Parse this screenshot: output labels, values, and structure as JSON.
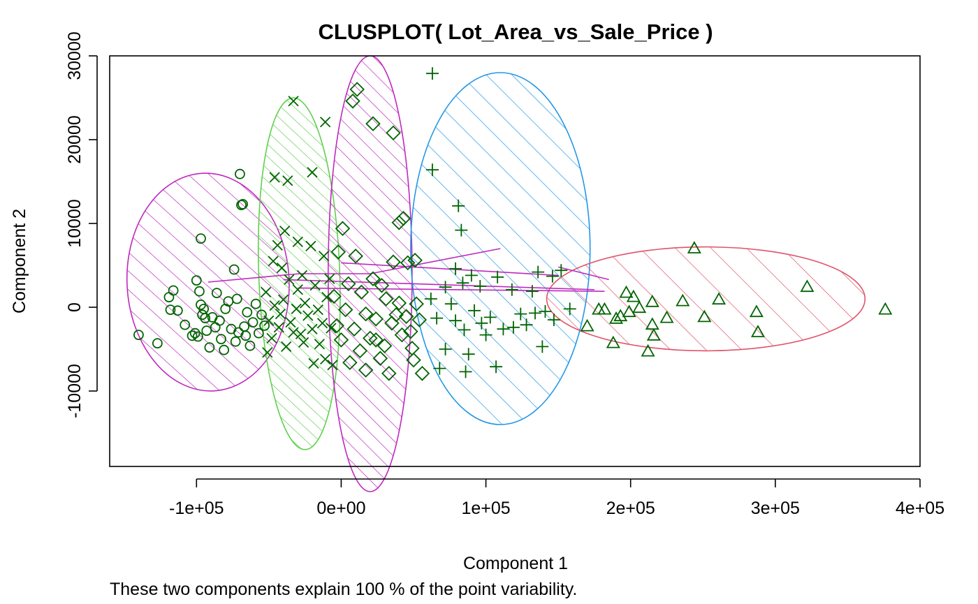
{
  "chart_data": {
    "type": "scatter",
    "title": "CLUSPLOT( Lot_Area_vs_Sale_Price )",
    "xlabel": "Component 1",
    "ylabel": "Component 2",
    "subtitle": "These two components explain 100 % of the point variability.",
    "xlim": [
      -160000,
      400000
    ],
    "ylim": [
      -19000,
      30000
    ],
    "x_ticks": [
      -100000,
      0,
      100000,
      200000,
      300000,
      400000
    ],
    "x_tick_labels": [
      "-1e+05",
      "0e+00",
      "1e+05",
      "2e+05",
      "3e+05",
      "4e+05"
    ],
    "y_ticks": [
      -10000,
      0,
      10000,
      20000,
      30000
    ],
    "y_tick_labels": [
      "-10000",
      "0",
      "10000",
      "20000",
      "30000"
    ],
    "point_color": "#006400",
    "clusters": [
      {
        "marker": "circle",
        "ellipse": {
          "cx": -92000,
          "cy": 3000,
          "rx": 56000,
          "ry": 13000,
          "rotation_deg": -3,
          "color": "#BE29BE",
          "hatch_angle_deg": 45
        },
        "points": [
          [
            -140000,
            -3300
          ],
          [
            -127000,
            -4300
          ],
          [
            -119000,
            1200
          ],
          [
            -118000,
            -300
          ],
          [
            -116000,
            2000
          ],
          [
            -113000,
            -400
          ],
          [
            -108000,
            -2100
          ],
          [
            -103000,
            -3400
          ],
          [
            -101000,
            -3100
          ],
          [
            -100000,
            3200
          ],
          [
            -99000,
            -3500
          ],
          [
            -98000,
            1900
          ],
          [
            -97000,
            8200
          ],
          [
            -97000,
            300
          ],
          [
            -95000,
            -200
          ],
          [
            -94000,
            -1300
          ],
          [
            -93000,
            -2800
          ],
          [
            -91000,
            -4800
          ],
          [
            -89000,
            -1200
          ],
          [
            -86000,
            1700
          ],
          [
            -84000,
            -1600
          ],
          [
            -83000,
            -3800
          ],
          [
            -81000,
            -5100
          ],
          [
            -80000,
            -200
          ],
          [
            -78000,
            700
          ],
          [
            -76000,
            -2600
          ],
          [
            -74000,
            4500
          ],
          [
            -73000,
            -4100
          ],
          [
            -72000,
            1000
          ],
          [
            -70000,
            15900
          ],
          [
            -69000,
            12200
          ],
          [
            -68000,
            12300
          ],
          [
            -67000,
            -2300
          ],
          [
            -65000,
            -600
          ],
          [
            -63000,
            -4600
          ],
          [
            -61000,
            -1800
          ],
          [
            -59000,
            400
          ],
          [
            -57000,
            -3100
          ],
          [
            -55000,
            -900
          ],
          [
            -53000,
            -2200
          ],
          [
            -71000,
            -3000
          ],
          [
            -87000,
            -2400
          ],
          [
            -96000,
            -900
          ],
          [
            -66000,
            -3400
          ]
        ]
      },
      {
        "marker": "x",
        "ellipse": {
          "cx": -29000,
          "cy": 4000,
          "rx": 28000,
          "ry": 21000,
          "rotation_deg": -2,
          "color": "#61D04F",
          "hatch_angle_deg": 45
        },
        "points": [
          [
            -33000,
            24600
          ],
          [
            -11000,
            22100
          ],
          [
            -20000,
            16100
          ],
          [
            -37000,
            15100
          ],
          [
            -46000,
            15500
          ],
          [
            -39000,
            9100
          ],
          [
            -44000,
            7400
          ],
          [
            -30000,
            7800
          ],
          [
            -21000,
            7300
          ],
          [
            -12000,
            6100
          ],
          [
            -47000,
            5500
          ],
          [
            -41000,
            4700
          ],
          [
            -36000,
            3300
          ],
          [
            -27000,
            3800
          ],
          [
            -18000,
            2600
          ],
          [
            -8000,
            3400
          ],
          [
            -52000,
            1800
          ],
          [
            -46000,
            200
          ],
          [
            -40000,
            900
          ],
          [
            -31000,
            -200
          ],
          [
            -25000,
            500
          ],
          [
            -16000,
            -300
          ],
          [
            -10000,
            1200
          ],
          [
            -50000,
            -1600
          ],
          [
            -43000,
            -2400
          ],
          [
            -35000,
            -1800
          ],
          [
            -28000,
            -3200
          ],
          [
            -20000,
            -2600
          ],
          [
            -13000,
            -1900
          ],
          [
            -48000,
            -3700
          ],
          [
            -38000,
            -4700
          ],
          [
            -26000,
            -4200
          ],
          [
            -19000,
            -6700
          ],
          [
            -11000,
            -6200
          ],
          [
            -6000,
            -6900
          ],
          [
            -51000,
            -5400
          ],
          [
            -33000,
            -3000
          ],
          [
            -23000,
            -1000
          ],
          [
            -15000,
            -4400
          ],
          [
            -42000,
            -800
          ],
          [
            -30000,
            2100
          ],
          [
            -7000,
            -2500
          ]
        ]
      },
      {
        "marker": "diamond",
        "ellipse": {
          "cx": 20000,
          "cy": 4000,
          "rx": 29000,
          "ry": 26000,
          "rotation_deg": 0,
          "color": "#BE29BE",
          "hatch_angle_deg": 45
        },
        "points": [
          [
            11000,
            26000
          ],
          [
            8000,
            24600
          ],
          [
            22000,
            21900
          ],
          [
            36000,
            20800
          ],
          [
            40000,
            10100
          ],
          [
            43000,
            10600
          ],
          [
            1000,
            9400
          ],
          [
            10000,
            6100
          ],
          [
            -2000,
            6600
          ],
          [
            36000,
            5400
          ],
          [
            46000,
            5300
          ],
          [
            51000,
            5600
          ],
          [
            22000,
            3400
          ],
          [
            28000,
            2600
          ],
          [
            5000,
            2800
          ],
          [
            14000,
            1800
          ],
          [
            -5000,
            1300
          ],
          [
            31000,
            1000
          ],
          [
            40000,
            500
          ],
          [
            52000,
            400
          ],
          [
            3000,
            -300
          ],
          [
            17000,
            -800
          ],
          [
            24000,
            -1400
          ],
          [
            35000,
            -1900
          ],
          [
            45000,
            -1100
          ],
          [
            54000,
            -1500
          ],
          [
            -3000,
            -2200
          ],
          [
            9000,
            -2600
          ],
          [
            20000,
            -3700
          ],
          [
            30000,
            -4600
          ],
          [
            42000,
            -3300
          ],
          [
            49000,
            -4900
          ],
          [
            13000,
            -5200
          ],
          [
            27000,
            -6100
          ],
          [
            33000,
            -7900
          ],
          [
            50000,
            -6300
          ],
          [
            56000,
            -7900
          ],
          [
            6000,
            -6600
          ],
          [
            17000,
            -7500
          ],
          [
            38000,
            -900
          ],
          [
            48000,
            -2900
          ],
          [
            24000,
            -3900
          ],
          [
            0,
            -3900
          ]
        ]
      },
      {
        "marker": "plus",
        "ellipse": {
          "cx": 110000,
          "cy": 7000,
          "rx": 62000,
          "ry": 21000,
          "rotation_deg": 0,
          "color": "#2297E6",
          "hatch_angle_deg": 45
        },
        "points": [
          [
            63000,
            27900
          ],
          [
            63000,
            16400
          ],
          [
            81000,
            12100
          ],
          [
            83000,
            9200
          ],
          [
            136000,
            4200
          ],
          [
            79000,
            4600
          ],
          [
            90000,
            3800
          ],
          [
            108000,
            3600
          ],
          [
            146000,
            3700
          ],
          [
            158000,
            -200
          ],
          [
            72000,
            2400
          ],
          [
            84000,
            2900
          ],
          [
            96000,
            2500
          ],
          [
            118000,
            2100
          ],
          [
            132000,
            1900
          ],
          [
            62000,
            1000
          ],
          [
            76000,
            400
          ],
          [
            92000,
            -400
          ],
          [
            103000,
            -1200
          ],
          [
            124000,
            -800
          ],
          [
            141000,
            -500
          ],
          [
            66000,
            -1300
          ],
          [
            85000,
            -2700
          ],
          [
            97000,
            -1900
          ],
          [
            112000,
            -2600
          ],
          [
            128000,
            -2100
          ],
          [
            147000,
            -1500
          ],
          [
            72000,
            -5000
          ],
          [
            88000,
            -5600
          ],
          [
            107000,
            -7100
          ],
          [
            139000,
            -4700
          ],
          [
            68000,
            -7300
          ],
          [
            86000,
            -7700
          ],
          [
            119000,
            -2400
          ],
          [
            100000,
            -3300
          ],
          [
            134000,
            -700
          ],
          [
            79000,
            -1600
          ],
          [
            152000,
            4400
          ]
        ]
      },
      {
        "marker": "triangle",
        "ellipse": {
          "cx": 252000,
          "cy": 1000,
          "rx": 110000,
          "ry": 6200,
          "rotation_deg": 0,
          "color": "#DF536B",
          "hatch_angle_deg": 45
        },
        "points": [
          [
            244000,
            7000
          ],
          [
            322000,
            2400
          ],
          [
            376000,
            -300
          ],
          [
            261000,
            900
          ],
          [
            287000,
            -600
          ],
          [
            197000,
            1700
          ],
          [
            202000,
            1200
          ],
          [
            215000,
            600
          ],
          [
            236000,
            700
          ],
          [
            182000,
            -300
          ],
          [
            190000,
            -1400
          ],
          [
            199000,
            -600
          ],
          [
            206000,
            -100
          ],
          [
            215000,
            -2100
          ],
          [
            225000,
            -1300
          ],
          [
            251000,
            -1200
          ],
          [
            170000,
            -2300
          ],
          [
            188000,
            -4300
          ],
          [
            212000,
            -5300
          ],
          [
            216000,
            -3400
          ],
          [
            288000,
            -3000
          ],
          [
            193000,
            -1100
          ],
          [
            178000,
            -300
          ]
        ]
      }
    ],
    "connecting_lines": [
      {
        "from": [
          -92000,
          3000
        ],
        "to": [
          -29000,
          4000
        ]
      },
      {
        "from": [
          -29000,
          4000
        ],
        "to": [
          20000,
          4000
        ]
      },
      {
        "from": [
          20000,
          4000
        ],
        "to": [
          110000,
          7000
        ]
      },
      {
        "from": [
          -40000,
          3300
        ],
        "to": [
          175000,
          2100
        ]
      },
      {
        "from": [
          -30000,
          2300
        ],
        "to": [
          182000,
          1900
        ]
      },
      {
        "from": [
          0,
          5300
        ],
        "to": [
          150000,
          3800
        ]
      },
      {
        "from": [
          150000,
          4800
        ],
        "to": [
          185000,
          3300
        ]
      }
    ],
    "connecting_line_color": "#BE29BE"
  }
}
